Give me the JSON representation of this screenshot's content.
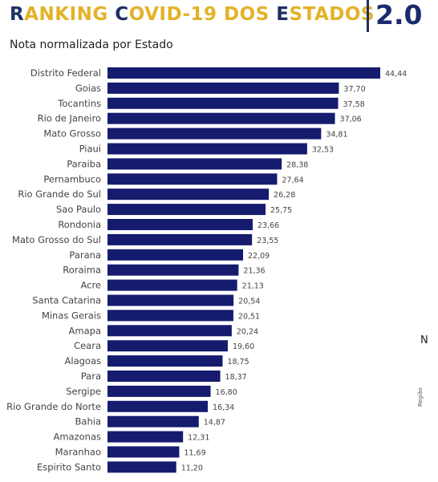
{
  "header": {
    "title_segments": [
      {
        "text": "R",
        "highlight": true
      },
      {
        "text": "ANKING ",
        "highlight": false
      },
      {
        "text": "C",
        "highlight": true
      },
      {
        "text": "OVID-19 DOS ",
        "highlight": false
      },
      {
        "text": "E",
        "highlight": true
      },
      {
        "text": "STADOS",
        "highlight": false
      }
    ],
    "version": "2.0"
  },
  "colors": {
    "bar": "#151c6e",
    "title_accent": "#e3b227",
    "title_highlight": "#1f2f63"
  },
  "side": {
    "partial_text": "N",
    "rotated_label": "Região"
  },
  "chart_data": {
    "type": "bar",
    "orientation": "horizontal",
    "title": "Nota normalizada por Estado",
    "xlabel": "",
    "ylabel": "",
    "xlim": [
      0,
      45
    ],
    "grid": false,
    "categories": [
      "Distrito Federal",
      "Goias",
      "Tocantins",
      "Rio de Janeiro",
      "Mato Grosso",
      "Piaui",
      "Paraiba",
      "Pernambuco",
      "Rio Grande do Sul",
      "Sao Paulo",
      "Rondonia",
      "Mato Grosso do Sul",
      "Parana",
      "Roraima",
      "Acre",
      "Santa Catarina",
      "Minas Gerais",
      "Amapa",
      "Ceara",
      "Alagoas",
      "Para",
      "Sergipe",
      "Rio Grande do Norte",
      "Bahia",
      "Amazonas",
      "Maranhao",
      "Espirito Santo"
    ],
    "values": [
      44.44,
      37.7,
      37.58,
      37.06,
      34.81,
      32.53,
      28.38,
      27.64,
      26.28,
      25.75,
      23.66,
      23.55,
      22.09,
      21.36,
      21.13,
      20.54,
      20.51,
      20.24,
      19.6,
      18.75,
      18.37,
      16.8,
      16.34,
      14.87,
      12.31,
      11.69,
      11.2
    ],
    "value_labels": [
      "44,44",
      "37,70",
      "37,58",
      "37,06",
      "34,81",
      "32,53",
      "28,38",
      "27,64",
      "26,28",
      "25,75",
      "23,66",
      "23,55",
      "22,09",
      "21,36",
      "21,13",
      "20,54",
      "20,51",
      "20,24",
      "19,60",
      "18,75",
      "18,37",
      "16,80",
      "16,34",
      "14,87",
      "12,31",
      "11,69",
      "11,20"
    ]
  }
}
